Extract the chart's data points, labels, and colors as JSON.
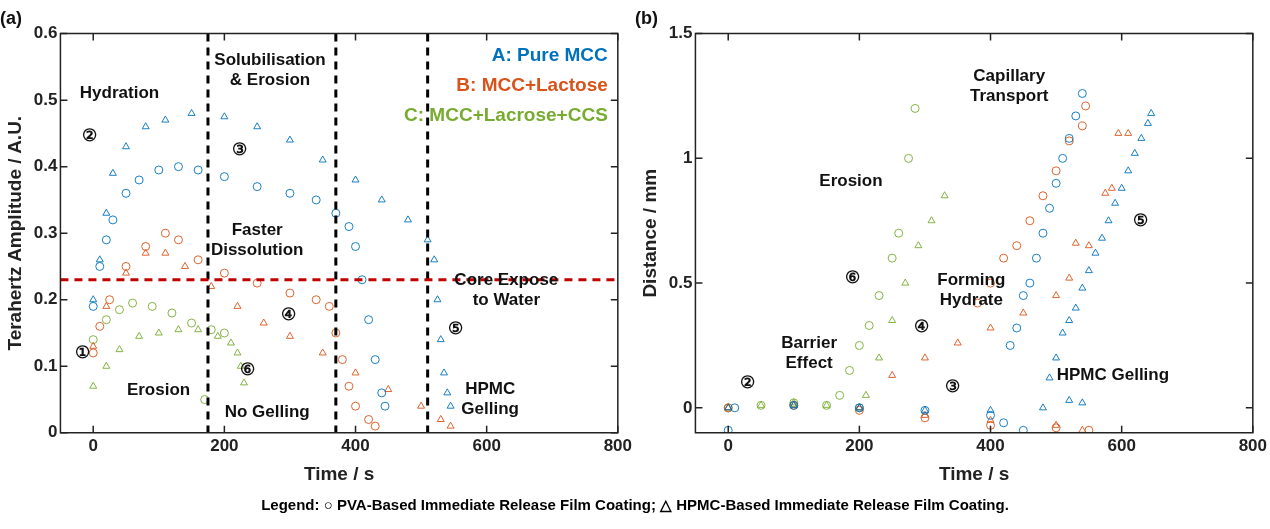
{
  "chart_data": [
    {
      "type": "scatter",
      "title": "(a)",
      "xlabel": "Time / s",
      "ylabel": "Terahertz Amplitude / A.U.",
      "xlim": [
        -50,
        800
      ],
      "ylim": [
        0,
        0.6
      ],
      "xticks": [
        0,
        200,
        400,
        600,
        800
      ],
      "yticks": [
        0,
        0.1,
        0.2,
        0.3,
        0.4,
        0.5,
        0.6
      ],
      "grid": false,
      "legend": "top right",
      "series": [
        {
          "name": "A: Pure MCC",
          "color": "#0072bd",
          "marker": "circle",
          "x": [
            0,
            10,
            20,
            30,
            50,
            70,
            100,
            130,
            160,
            200,
            250,
            300,
            340,
            370,
            390,
            400,
            410,
            420,
            430,
            440,
            445
          ],
          "values": [
            0.19,
            0.25,
            0.29,
            0.32,
            0.36,
            0.38,
            0.395,
            0.4,
            0.395,
            0.385,
            0.37,
            0.36,
            0.35,
            0.33,
            0.31,
            0.28,
            0.23,
            0.17,
            0.11,
            0.06,
            0.04
          ]
        },
        {
          "color": "#0072bd",
          "marker": "triangle",
          "x": [
            0,
            10,
            20,
            30,
            50,
            80,
            110,
            150,
            200,
            250,
            300,
            350,
            400,
            440,
            480,
            510,
            520,
            525,
            530,
            535,
            540,
            545
          ],
          "values": [
            0.2,
            0.26,
            0.33,
            0.39,
            0.43,
            0.46,
            0.47,
            0.48,
            0.475,
            0.46,
            0.44,
            0.41,
            0.38,
            0.35,
            0.32,
            0.29,
            0.26,
            0.2,
            0.14,
            0.09,
            0.06,
            0.04
          ]
        },
        {
          "name": "B: MCC+Lactose",
          "color": "#d95319",
          "marker": "circle",
          "x": [
            0,
            10,
            25,
            50,
            80,
            110,
            130,
            160,
            200,
            250,
            300,
            340,
            360,
            370,
            380,
            390,
            400,
            420,
            430
          ],
          "values": [
            0.12,
            0.16,
            0.2,
            0.25,
            0.28,
            0.3,
            0.29,
            0.26,
            0.24,
            0.225,
            0.21,
            0.2,
            0.19,
            0.15,
            0.11,
            0.07,
            0.04,
            0.02,
            0.01
          ]
        },
        {
          "color": "#d95319",
          "marker": "triangle",
          "x": [
            0,
            20,
            50,
            80,
            110,
            140,
            180,
            220,
            260,
            300,
            350,
            400,
            450,
            500,
            530,
            545
          ],
          "values": [
            0.13,
            0.19,
            0.24,
            0.27,
            0.27,
            0.25,
            0.22,
            0.19,
            0.165,
            0.145,
            0.12,
            0.09,
            0.065,
            0.04,
            0.02,
            0.01
          ]
        },
        {
          "name": "C: MCC+Lacrose+CCS",
          "color": "#77ac30",
          "marker": "circle",
          "x": [
            0,
            20,
            40,
            60,
            90,
            120,
            150,
            180,
            200,
            170
          ],
          "values": [
            0.14,
            0.17,
            0.185,
            0.195,
            0.19,
            0.18,
            0.165,
            0.155,
            0.15,
            0.05
          ]
        },
        {
          "color": "#77ac30",
          "marker": "triangle",
          "x": [
            0,
            20,
            40,
            70,
            100,
            130,
            160,
            190,
            210,
            220,
            225,
            230
          ],
          "values": [
            0.07,
            0.1,
            0.125,
            0.145,
            0.15,
            0.155,
            0.155,
            0.145,
            0.135,
            0.12,
            0.1,
            0.075
          ]
        }
      ],
      "ref_lines": [
        {
          "axis": "x",
          "value": 175,
          "color": "#000000",
          "line_style": "dashed"
        },
        {
          "axis": "x",
          "value": 370,
          "color": "#000000",
          "line_style": "dashed"
        },
        {
          "axis": "x",
          "value": 510,
          "color": "#000000",
          "line_style": "dashed"
        },
        {
          "axis": "y",
          "value": 0.23,
          "color": "#c00000",
          "line_style": "dashed"
        }
      ],
      "annotations": [
        "Hydration",
        "Solubilisation\n& Erosion",
        "②",
        "③",
        "Faster\nDissolution",
        "④",
        "①",
        "⑥",
        "Erosion",
        "No Gelling",
        "HPMC\nGelling",
        "Core Expose\nto Water",
        "⑤",
        "Legend: ○ PVA-Based Immediate Release Film Coating; △ HPMC-Based Immediate Release Film Coating."
      ]
    },
    {
      "type": "scatter",
      "title": "(b)",
      "xlabel": "Time / s",
      "ylabel": "Distance / mm",
      "xlim": [
        -50,
        800
      ],
      "ylim": [
        -0.1,
        1.5
      ],
      "xticks": [
        0,
        200,
        400,
        600,
        800
      ],
      "yticks": [
        0,
        0.5,
        1,
        1.5
      ],
      "grid": false,
      "series": [
        {
          "color": "#0072bd",
          "marker": "circle",
          "x": [
            0,
            10,
            100,
            200,
            300,
            400,
            420,
            450,
            430,
            440,
            450,
            460,
            470,
            480,
            490,
            500,
            510,
            520,
            530,
            540
          ],
          "values": [
            -0.09,
            0,
            0.01,
            0,
            -0.01,
            -0.03,
            -0.06,
            -0.09,
            0.25,
            0.32,
            0.45,
            0.5,
            0.6,
            0.7,
            0.8,
            0.9,
            1,
            1.08,
            1.17,
            1.26
          ]
        },
        {
          "color": "#0072bd",
          "marker": "triangle",
          "x": [
            0,
            100,
            200,
            300,
            400,
            480,
            520,
            540,
            490,
            500,
            510,
            520,
            530,
            540,
            550,
            560,
            570,
            580,
            590,
            600,
            610,
            620,
            630,
            640,
            645
          ],
          "values": [
            0,
            0.01,
            0,
            -0.01,
            -0.01,
            0,
            0.03,
            0.02,
            0.12,
            0.2,
            0.3,
            0.35,
            0.4,
            0.48,
            0.55,
            0.62,
            0.68,
            0.75,
            0.82,
            0.88,
            0.95,
            1.02,
            1.08,
            1.14,
            1.18
          ]
        },
        {
          "color": "#d95319",
          "marker": "circle",
          "x": [
            0,
            100,
            200,
            300,
            400,
            500,
            550,
            380,
            400,
            420,
            440,
            460,
            480,
            500,
            520,
            540,
            545
          ],
          "values": [
            0,
            0.01,
            -0.01,
            -0.04,
            -0.07,
            -0.08,
            -0.09,
            0.42,
            0.5,
            0.6,
            0.65,
            0.75,
            0.85,
            0.95,
            1.07,
            1.13,
            1.21
          ]
        },
        {
          "color": "#d95319",
          "marker": "triangle",
          "x": [
            0,
            100,
            200,
            300,
            400,
            500,
            540,
            250,
            300,
            350,
            400,
            450,
            500,
            520,
            530,
            550,
            575,
            585,
            595,
            610
          ],
          "values": [
            0,
            0.01,
            0,
            -0.03,
            -0.05,
            -0.07,
            -0.09,
            0.13,
            0.2,
            0.26,
            0.32,
            0.38,
            0.45,
            0.52,
            0.66,
            0.65,
            0.86,
            0.88,
            1.1,
            1.1
          ]
        },
        {
          "color": "#77ac30",
          "marker": "circle",
          "x": [
            0,
            50,
            100,
            150,
            200,
            170,
            185,
            200,
            215,
            230,
            250,
            260,
            275,
            285
          ],
          "values": [
            0,
            0.01,
            0.02,
            0.01,
            0,
            0.05,
            0.15,
            0.25,
            0.33,
            0.45,
            0.6,
            0.7,
            1,
            1.2
          ]
        },
        {
          "color": "#77ac30",
          "marker": "triangle",
          "x": [
            0,
            50,
            100,
            150,
            200,
            210,
            230,
            250,
            270,
            290,
            310,
            330
          ],
          "values": [
            0,
            0.01,
            0.02,
            0.01,
            0,
            0.05,
            0.2,
            0.35,
            0.5,
            0.65,
            0.75,
            0.85
          ]
        }
      ],
      "annotations": [
        "Capillary\nTransport",
        "Erosion",
        "⑤",
        "⑥",
        "Forming\nHydrate",
        "④",
        "Barrier\nEffect",
        "②",
        "③",
        "HPMC Gelling"
      ]
    }
  ]
}
